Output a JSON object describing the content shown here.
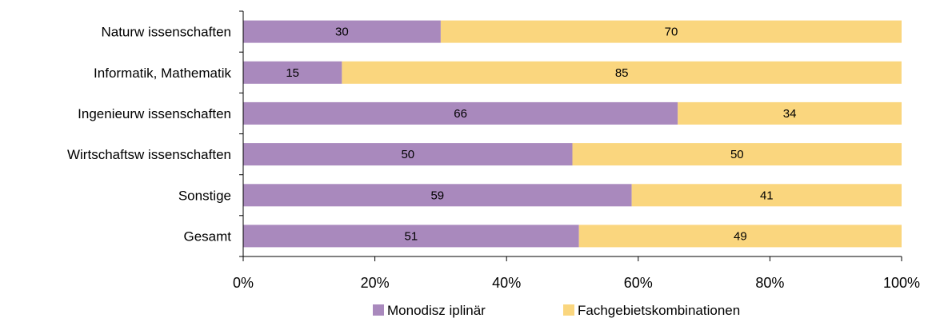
{
  "chart_data": {
    "type": "bar",
    "orientation": "horizontal",
    "stacked": "percent",
    "categories": [
      "Naturw issenschaften",
      "Informatik, Mathematik",
      "Ingenieurw issenschaften",
      "Wirtschaftsw issenschaften",
      "Sonstige",
      "Gesamt"
    ],
    "series": [
      {
        "name": "Monodisz iplinär",
        "color": "#a989bd",
        "values": [
          30,
          15,
          66,
          50,
          59,
          51
        ]
      },
      {
        "name": "Fachgebietskombinationen",
        "color": "#fad67e",
        "values": [
          70,
          85,
          34,
          50,
          41,
          49
        ]
      }
    ],
    "x_ticks": [
      "0%",
      "20%",
      "40%",
      "60%",
      "80%",
      "100%"
    ],
    "xlim": [
      0,
      100
    ],
    "grid": false,
    "legend_position": "bottom",
    "title": "",
    "xlabel": "",
    "ylabel": ""
  }
}
